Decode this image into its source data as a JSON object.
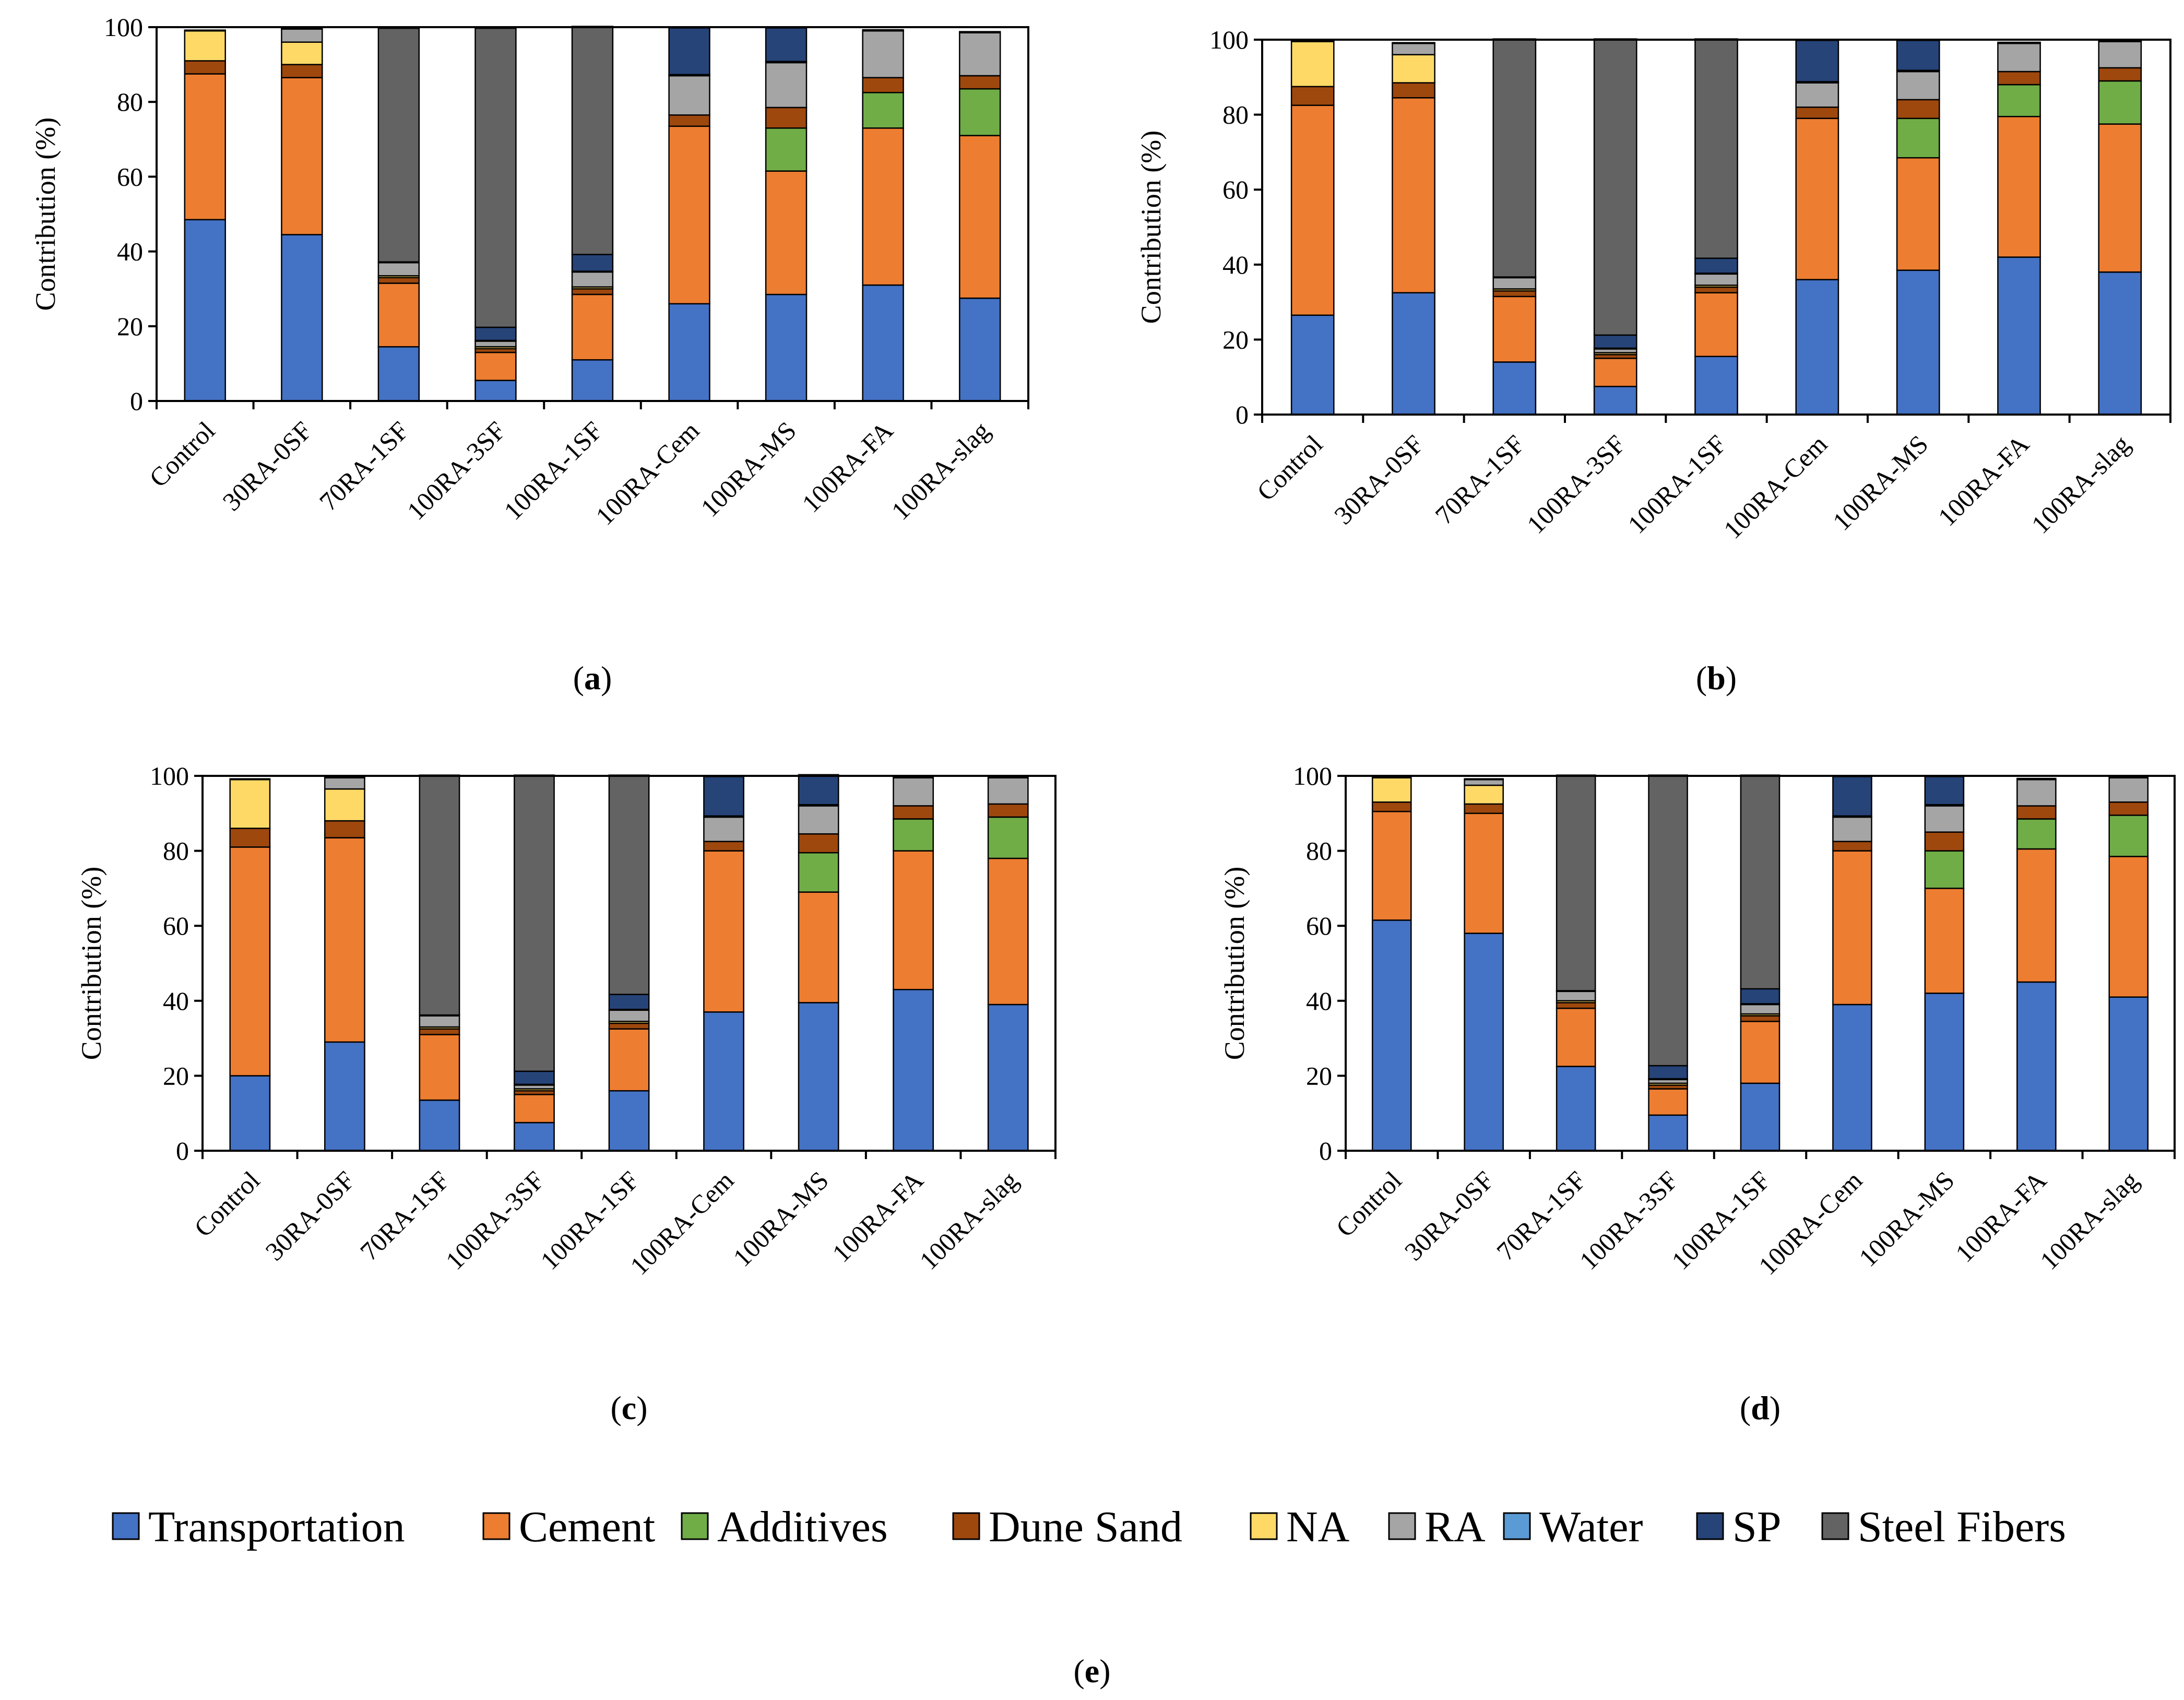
{
  "colors": {
    "Transportation": "#4472c4",
    "Cement": "#ed7d31",
    "Additives": "#70ad47",
    "Dune Sand": "#9e480e",
    "NA": "#ffd966",
    "RA": "#a5a5a5",
    "Water": "#5b9bd5",
    "SP": "#264478",
    "Steel Fibers": "#636363"
  },
  "legend": {
    "items": [
      "Transportation",
      "Cement",
      "Additives",
      "Dune Sand",
      "NA",
      "RA",
      "Water",
      "SP",
      "Steel Fibers"
    ],
    "caption_open": "(",
    "caption_letter": "e",
    "caption_close": ")"
  },
  "chart_data": [
    {
      "type": "bar",
      "stacked": true,
      "panel": "a",
      "ylabel": "Contribution (%)",
      "ylim": [
        0,
        100
      ],
      "yticks": [
        0,
        20,
        40,
        60,
        80,
        100
      ],
      "categories": [
        "Control",
        "30RA-0SF",
        "70RA-1SF",
        "100RA-3SF",
        "100RA-1SF",
        "100RA-Cem",
        "100RA-MS",
        "100RA-FA",
        "100RA-slag"
      ],
      "series": [
        {
          "name": "Transportation",
          "values": [
            48.5,
            44.5,
            14.5,
            5.5,
            11.0,
            26.0,
            28.5,
            31.0,
            27.5
          ]
        },
        {
          "name": "Cement",
          "values": [
            39.0,
            42.0,
            17.0,
            7.5,
            17.5,
            47.5,
            33.0,
            42.0,
            43.5
          ]
        },
        {
          "name": "Additives",
          "values": [
            0,
            0,
            0,
            0,
            0,
            0,
            11.5,
            9.5,
            12.5
          ]
        },
        {
          "name": "Dune Sand",
          "values": [
            3.5,
            3.5,
            1.5,
            1.0,
            1.5,
            3.0,
            5.5,
            4.0,
            3.5
          ]
        },
        {
          "name": "NA",
          "values": [
            8.0,
            6.0,
            0.5,
            0.5,
            0.5,
            0,
            0,
            0,
            0
          ]
        },
        {
          "name": "RA",
          "values": [
            0,
            3.5,
            3.5,
            1.5,
            4.0,
            10.5,
            12.0,
            12.5,
            11.5
          ]
        },
        {
          "name": "Water",
          "values": [
            0.2,
            0.2,
            0.2,
            0.2,
            0.2,
            0.3,
            0.3,
            0.3,
            0.3
          ]
        },
        {
          "name": "SP",
          "values": [
            0,
            0,
            0,
            3.5,
            4.5,
            12.5,
            9.0,
            0,
            0
          ]
        },
        {
          "name": "Steel Fibers",
          "values": [
            0,
            0,
            62.5,
            80.0,
            61.0,
            0,
            0,
            0,
            0
          ]
        }
      ]
    },
    {
      "type": "bar",
      "stacked": true,
      "panel": "b",
      "ylabel": "Contribution (%)",
      "ylim": [
        0,
        100
      ],
      "yticks": [
        0,
        20,
        40,
        60,
        80,
        100
      ],
      "categories": [
        "Control",
        "30RA-0SF",
        "70RA-1SF",
        "100RA-3SF",
        "100RA-1SF",
        "100RA-Cem",
        "100RA-MS",
        "100RA-FA",
        "100RA-slag"
      ],
      "series": [
        {
          "name": "Transportation",
          "values": [
            26.5,
            32.5,
            14.0,
            7.5,
            15.5,
            36.0,
            38.5,
            42.0,
            38.0
          ]
        },
        {
          "name": "Cement",
          "values": [
            56.0,
            52.0,
            17.5,
            7.5,
            17.0,
            43.0,
            30.0,
            37.5,
            39.5
          ]
        },
        {
          "name": "Additives",
          "values": [
            0,
            0,
            0,
            0,
            0,
            0,
            10.5,
            8.5,
            11.5
          ]
        },
        {
          "name": "Dune Sand",
          "values": [
            5.0,
            4.0,
            1.5,
            1.0,
            1.5,
            3.0,
            5.0,
            3.5,
            3.5
          ]
        },
        {
          "name": "NA",
          "values": [
            12.0,
            7.5,
            0.5,
            0.5,
            0.5,
            0,
            0,
            0,
            0
          ]
        },
        {
          "name": "RA",
          "values": [
            0,
            3.0,
            3.0,
            1.0,
            3.0,
            6.5,
            7.5,
            7.5,
            7.0
          ]
        },
        {
          "name": "Water",
          "values": [
            0.2,
            0.2,
            0.2,
            0.2,
            0.2,
            0.3,
            0.3,
            0.3,
            0.3
          ]
        },
        {
          "name": "SP",
          "values": [
            0,
            0,
            0,
            3.5,
            4.0,
            11.0,
            8.0,
            0,
            0
          ]
        },
        {
          "name": "Steel Fibers",
          "values": [
            0,
            0,
            63.5,
            79.0,
            58.5,
            0,
            0,
            0,
            0
          ]
        }
      ]
    },
    {
      "type": "bar",
      "stacked": true,
      "panel": "c",
      "ylabel": "Contribution (%)",
      "ylim": [
        0,
        100
      ],
      "yticks": [
        0,
        20,
        40,
        60,
        80,
        100
      ],
      "categories": [
        "Control",
        "30RA-0SF",
        "70RA-1SF",
        "100RA-3SF",
        "100RA-1SF",
        "100RA-Cem",
        "100RA-MS",
        "100RA-FA",
        "100RA-slag"
      ],
      "series": [
        {
          "name": "Transportation",
          "values": [
            20.0,
            29.0,
            13.5,
            7.5,
            16.0,
            37.0,
            39.5,
            43.0,
            39.0
          ]
        },
        {
          "name": "Cement",
          "values": [
            61.0,
            54.5,
            17.5,
            7.5,
            16.5,
            43.0,
            29.5,
            37.0,
            39.0
          ]
        },
        {
          "name": "Additives",
          "values": [
            0,
            0,
            0,
            0,
            0,
            0,
            10.5,
            8.5,
            11.0
          ]
        },
        {
          "name": "Dune Sand",
          "values": [
            5.0,
            4.5,
            1.5,
            1.0,
            1.5,
            2.5,
            5.0,
            3.5,
            3.5
          ]
        },
        {
          "name": "NA",
          "values": [
            13.0,
            8.5,
            0.5,
            0.5,
            0.5,
            0,
            0,
            0,
            0
          ]
        },
        {
          "name": "RA",
          "values": [
            0,
            3.0,
            3.0,
            1.0,
            3.0,
            6.5,
            7.5,
            7.5,
            7.0
          ]
        },
        {
          "name": "Water",
          "values": [
            0.2,
            0.2,
            0.2,
            0.2,
            0.2,
            0.3,
            0.3,
            0.3,
            0.3
          ]
        },
        {
          "name": "SP",
          "values": [
            0,
            0,
            0,
            3.5,
            4.0,
            10.5,
            8.0,
            0,
            0
          ]
        },
        {
          "name": "Steel Fibers",
          "values": [
            0,
            0,
            64.0,
            79.0,
            58.5,
            0,
            0,
            0,
            0
          ]
        }
      ]
    },
    {
      "type": "bar",
      "stacked": true,
      "panel": "d",
      "ylabel": "Contribution (%)",
      "ylim": [
        0,
        100
      ],
      "yticks": [
        0,
        20,
        40,
        60,
        80,
        100
      ],
      "categories": [
        "Control",
        "30RA-0SF",
        "70RA-1SF",
        "100RA-3SF",
        "100RA-1SF",
        "100RA-Cem",
        "100RA-MS",
        "100RA-FA",
        "100RA-slag"
      ],
      "series": [
        {
          "name": "Transportation",
          "values": [
            61.5,
            58.0,
            22.5,
            9.5,
            18.0,
            39.0,
            42.0,
            45.0,
            41.0
          ]
        },
        {
          "name": "Cement",
          "values": [
            29.0,
            32.0,
            15.5,
            7.0,
            16.5,
            41.0,
            28.0,
            35.5,
            37.5
          ]
        },
        {
          "name": "Additives",
          "values": [
            0,
            0,
            0,
            0,
            0,
            0,
            10.0,
            8.0,
            11.0
          ]
        },
        {
          "name": "Dune Sand",
          "values": [
            2.5,
            2.5,
            1.5,
            1.0,
            1.5,
            2.5,
            5.0,
            3.5,
            3.5
          ]
        },
        {
          "name": "NA",
          "values": [
            6.5,
            5.0,
            0.5,
            0.5,
            0.5,
            0,
            0,
            0,
            0
          ]
        },
        {
          "name": "RA",
          "values": [
            0,
            1.5,
            2.5,
            1.0,
            2.5,
            6.5,
            7.0,
            7.0,
            6.5
          ]
        },
        {
          "name": "Water",
          "values": [
            0.2,
            0.2,
            0.2,
            0.2,
            0.2,
            0.3,
            0.3,
            0.3,
            0.3
          ]
        },
        {
          "name": "SP",
          "values": [
            0,
            0,
            0,
            3.5,
            4.0,
            10.5,
            7.5,
            0,
            0
          ]
        },
        {
          "name": "Steel Fibers",
          "values": [
            0,
            0,
            57.5,
            77.5,
            57.0,
            0,
            0,
            0,
            0
          ]
        }
      ]
    }
  ]
}
